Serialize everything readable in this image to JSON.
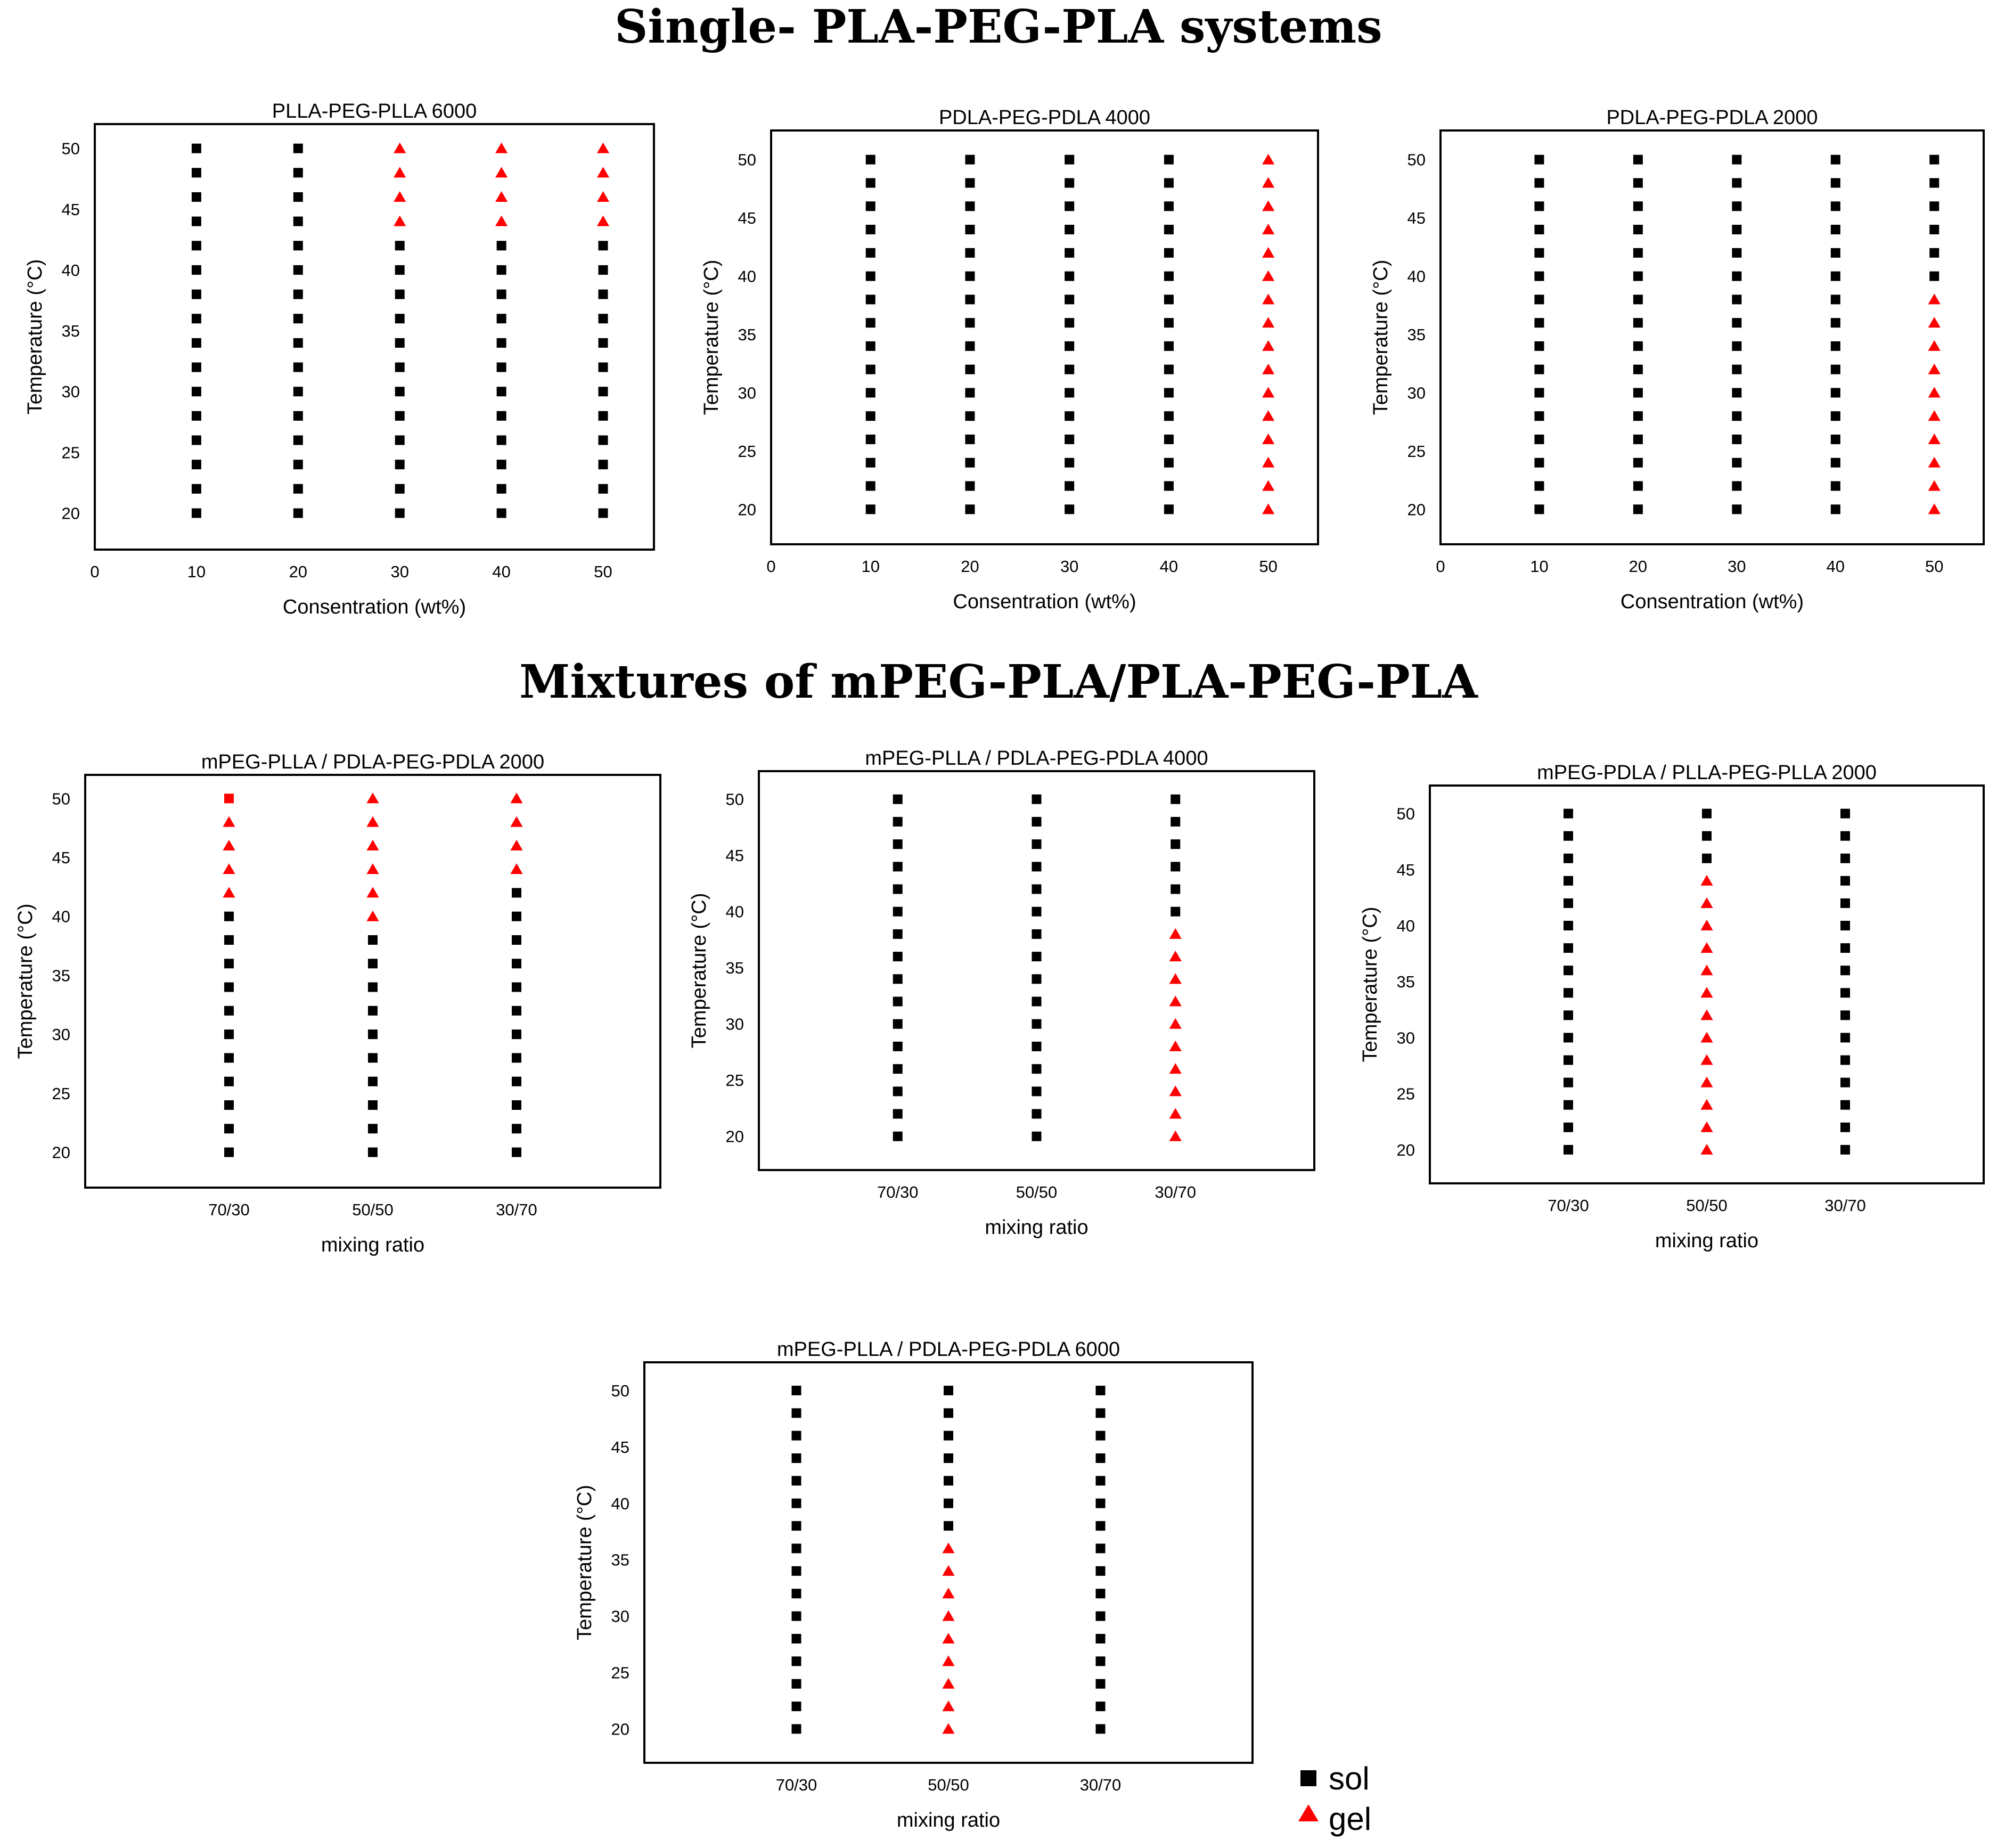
{
  "section_titles": {
    "single": "Single- PLA-PEG-PLA systems",
    "mixtures": "Mixtures of mPEG-PLA/PLA-PEG-PLA"
  },
  "legend": {
    "sol_label": "sol",
    "gel_label": "gel",
    "sol_color": "#000000",
    "gel_color": "#ff0000"
  },
  "chart_data": [
    {
      "id": "plla-peg-plla-6000",
      "type": "scatter",
      "title": "PLLA-PEG-PLLA 6000",
      "xlabel": "Consentration (wt%)",
      "ylabel": "Temperature (°C)",
      "x_ticks": [
        "0",
        "10",
        "20",
        "30",
        "40",
        "50"
      ],
      "xlim": [
        0,
        55
      ],
      "ylim": [
        17,
        52
      ],
      "y_ticks": [
        20,
        25,
        30,
        35,
        40,
        45,
        50
      ],
      "temperatures": [
        20,
        22,
        24,
        26,
        28,
        30,
        32,
        34,
        36,
        38,
        40,
        42,
        44,
        46,
        48,
        50
      ],
      "columns": [
        {
          "x": 10,
          "gel_min": null,
          "gel_max": null
        },
        {
          "x": 20,
          "gel_min": null,
          "gel_max": null
        },
        {
          "x": 30,
          "gel_min": 44,
          "gel_max": 50
        },
        {
          "x": 40,
          "gel_min": 44,
          "gel_max": 50
        },
        {
          "x": 50,
          "gel_min": 44,
          "gel_max": 50
        }
      ]
    },
    {
      "id": "pdla-peg-pdla-4000",
      "type": "scatter",
      "title": "PDLA-PEG-PDLA 4000",
      "xlabel": "Consentration (wt%)",
      "ylabel": "Temperature (°C)",
      "x_ticks": [
        "0",
        "10",
        "20",
        "30",
        "40",
        "50"
      ],
      "xlim": [
        0,
        55
      ],
      "ylim": [
        17,
        52.5
      ],
      "y_ticks": [
        20,
        25,
        30,
        35,
        40,
        45,
        50
      ],
      "temperatures": [
        20,
        22,
        24,
        26,
        28,
        30,
        32,
        34,
        36,
        38,
        40,
        42,
        44,
        46,
        48,
        50
      ],
      "columns": [
        {
          "x": 10,
          "gel_min": null,
          "gel_max": null
        },
        {
          "x": 20,
          "gel_min": null,
          "gel_max": null
        },
        {
          "x": 30,
          "gel_min": null,
          "gel_max": null
        },
        {
          "x": 40,
          "gel_min": null,
          "gel_max": null
        },
        {
          "x": 50,
          "gel_min": 20,
          "gel_max": 50
        }
      ]
    },
    {
      "id": "pdla-peg-pdla-2000",
      "type": "scatter",
      "title": "PDLA-PEG-PDLA 2000",
      "xlabel": "Consentration (wt%)",
      "ylabel": "Temperature (°C)",
      "x_ticks": [
        "0",
        "10",
        "20",
        "30",
        "40",
        "50"
      ],
      "xlim": [
        0,
        55
      ],
      "ylim": [
        17,
        52.5
      ],
      "y_ticks": [
        20,
        25,
        30,
        35,
        40,
        45,
        50
      ],
      "temperatures": [
        20,
        22,
        24,
        26,
        28,
        30,
        32,
        34,
        36,
        38,
        40,
        42,
        44,
        46,
        48,
        50
      ],
      "columns": [
        {
          "x": 10,
          "gel_min": null,
          "gel_max": null
        },
        {
          "x": 20,
          "gel_min": null,
          "gel_max": null
        },
        {
          "x": 30,
          "gel_min": null,
          "gel_max": null
        },
        {
          "x": 40,
          "gel_min": null,
          "gel_max": null
        },
        {
          "x": 50,
          "gel_min": 20,
          "gel_max": 38
        }
      ]
    },
    {
      "id": "mpeg-plla-pdla-peg-pdla-2000",
      "type": "scatter",
      "title": "mPEG-PLLA / PDLA-PEG-PDLA 2000",
      "xlabel": "mixing ratio",
      "ylabel": "Temperature (°C)",
      "x_ticks": [
        "70/30",
        "50/50",
        "30/70"
      ],
      "xlim": [
        0,
        4
      ],
      "ylim": [
        17,
        52
      ],
      "y_ticks": [
        20,
        25,
        30,
        35,
        40,
        45,
        50
      ],
      "temperatures": [
        20,
        22,
        24,
        26,
        28,
        30,
        32,
        34,
        36,
        38,
        40,
        42,
        44,
        46,
        48,
        50
      ],
      "columns": [
        {
          "x": 1,
          "gel_min": 42,
          "gel_max": 48
        },
        {
          "x": 2,
          "gel_min": 40,
          "gel_max": 50
        },
        {
          "x": 3,
          "gel_min": 44,
          "gel_max": 50
        }
      ],
      "special_points": [
        {
          "x": 1,
          "y": 50,
          "marker": "square",
          "color": "#ff0000"
        }
      ]
    },
    {
      "id": "mpeg-plla-pdla-peg-pdla-4000",
      "type": "scatter",
      "title": "mPEG-PLLA / PDLA-PEG-PDLA 4000",
      "xlabel": "mixing ratio",
      "ylabel": "Temperature (°C)",
      "x_ticks": [
        "70/30",
        "50/50",
        "30/70"
      ],
      "xlim": [
        0,
        4
      ],
      "ylim": [
        17,
        52.5
      ],
      "y_ticks": [
        20,
        25,
        30,
        35,
        40,
        45,
        50
      ],
      "temperatures": [
        20,
        22,
        24,
        26,
        28,
        30,
        32,
        34,
        36,
        38,
        40,
        42,
        44,
        46,
        48,
        50
      ],
      "columns": [
        {
          "x": 1,
          "gel_min": null,
          "gel_max": null
        },
        {
          "x": 2,
          "gel_min": null,
          "gel_max": null
        },
        {
          "x": 3,
          "gel_min": 20,
          "gel_max": 38
        }
      ]
    },
    {
      "id": "mpeg-pdla-plla-peg-plla-2000",
      "type": "scatter",
      "title": "mPEG-PDLA / PLLA-PEG-PLLA 2000",
      "xlabel": "mixing ratio",
      "ylabel": "Temperature (°C)",
      "x_ticks": [
        "70/30",
        "50/50",
        "30/70"
      ],
      "xlim": [
        0,
        4
      ],
      "ylim": [
        17,
        52.5
      ],
      "y_ticks": [
        20,
        25,
        30,
        35,
        40,
        45,
        50
      ],
      "temperatures": [
        20,
        22,
        24,
        26,
        28,
        30,
        32,
        34,
        36,
        38,
        40,
        42,
        44,
        46,
        48,
        50
      ],
      "columns": [
        {
          "x": 1,
          "gel_min": null,
          "gel_max": null
        },
        {
          "x": 2,
          "gel_min": 20,
          "gel_max": 44
        },
        {
          "x": 3,
          "gel_min": null,
          "gel_max": null
        }
      ]
    },
    {
      "id": "mpeg-plla-pdla-peg-pdla-6000",
      "type": "scatter",
      "title": "mPEG-PLLA / PDLA-PEG-PDLA 6000",
      "xlabel": "mixing ratio",
      "ylabel": "Temperature (°C)",
      "x_ticks": [
        "70/30",
        "50/50",
        "30/70"
      ],
      "xlim": [
        0,
        4
      ],
      "ylim": [
        17,
        52.5
      ],
      "y_ticks": [
        20,
        25,
        30,
        35,
        40,
        45,
        50
      ],
      "temperatures": [
        20,
        22,
        24,
        26,
        28,
        30,
        32,
        34,
        36,
        38,
        40,
        42,
        44,
        46,
        48,
        50
      ],
      "columns": [
        {
          "x": 1,
          "gel_min": null,
          "gel_max": null
        },
        {
          "x": 2,
          "gel_min": 20,
          "gel_max": 36
        },
        {
          "x": 3,
          "gel_min": null,
          "gel_max": null
        }
      ]
    }
  ]
}
